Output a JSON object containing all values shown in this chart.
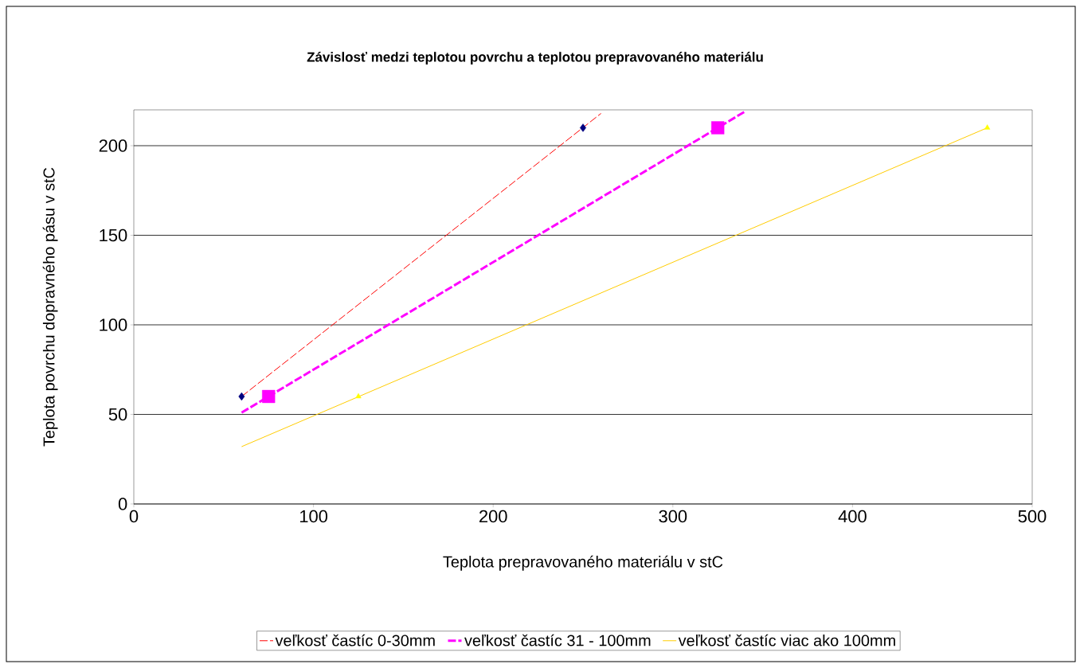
{
  "chart_data": {
    "type": "scatter",
    "title": "Závislosť medzi teplotou povrchu a teplotou prepravovaného materiálu",
    "xlabel": "Teplota prepravovaného materiálu v stC",
    "ylabel": "Teplota povrchu dopravného pásu v stC",
    "xlim": [
      0,
      500
    ],
    "ylim": [
      0,
      220
    ],
    "xticks": [
      0,
      100,
      200,
      300,
      400,
      500
    ],
    "yticks": [
      0,
      50,
      100,
      150,
      200
    ],
    "grid": "y",
    "legend": "bottom",
    "series": [
      {
        "color": "#000080",
        "marker": "diamond",
        "x": [
          60,
          250
        ],
        "values": [
          60,
          210
        ]
      },
      {
        "color": "#ff00ff",
        "marker": "square",
        "x": [
          75,
          325
        ],
        "values": [
          60,
          210
        ]
      },
      {
        "color": "#ffff00",
        "marker": "triangle",
        "x": [
          125,
          475
        ],
        "values": [
          60,
          210
        ]
      },
      {
        "type": "line",
        "name": "veľkosť častíc 0-30mm",
        "color": "#ff0000",
        "line_style": "dashed",
        "x": [
          60,
          260
        ],
        "values": [
          60,
          218
        ]
      },
      {
        "type": "line",
        "name": "veľkosť častíc 31 - 100mm",
        "color": "#ff00ff",
        "line_style": "dashed",
        "x": [
          60,
          340
        ],
        "values": [
          51,
          219
        ]
      },
      {
        "type": "line",
        "name": "veľkosť častíc viac ako 100mm",
        "color": "#ffcc00",
        "line_style": "solid",
        "x": [
          60,
          475
        ],
        "values": [
          32,
          210
        ]
      }
    ]
  }
}
